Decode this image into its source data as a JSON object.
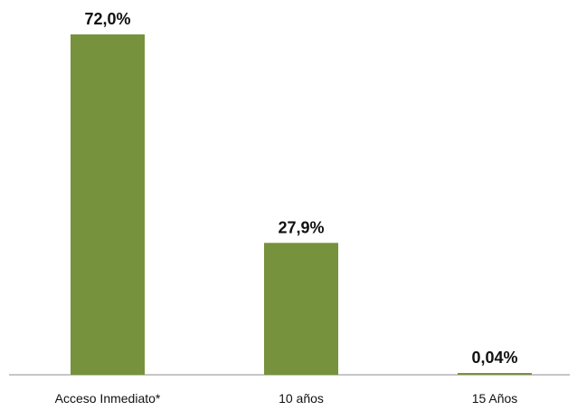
{
  "chart_data": {
    "type": "bar",
    "categories": [
      "Acceso Inmediato*",
      "10 años",
      "15 Años"
    ],
    "values": [
      72.0,
      27.9,
      0.04
    ],
    "value_labels": [
      "72,0%",
      "27,9%",
      "0,04%"
    ],
    "title": "",
    "xlabel": "",
    "ylabel": "",
    "ylim": [
      0,
      72.0
    ],
    "grid": false,
    "legend": "none",
    "bar_color": "#76923C",
    "axis_color": "#8C8C8C"
  }
}
